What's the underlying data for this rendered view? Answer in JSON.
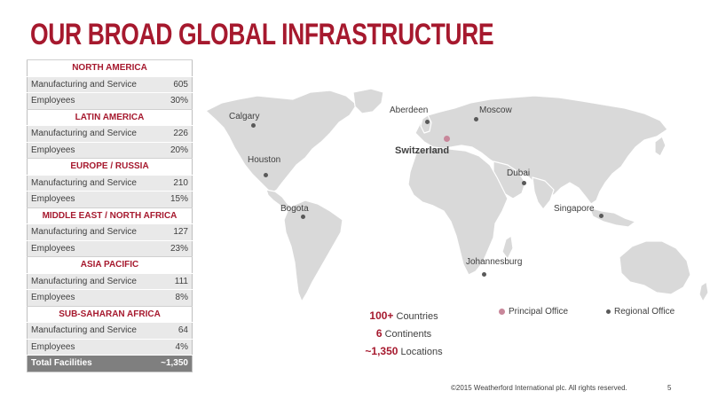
{
  "title": "OUR BROAD GLOBAL INFRASTRUCTURE",
  "regions": [
    {
      "name": "NORTH AMERICA",
      "mfg_label": "Manufacturing and Service",
      "mfg": "605",
      "emp_label": "Employees",
      "emp": "30%"
    },
    {
      "name": "LATIN AMERICA",
      "mfg_label": "Manufacturing and Service",
      "mfg": "226",
      "emp_label": "Employees",
      "emp": "20%"
    },
    {
      "name": "EUROPE / RUSSIA",
      "mfg_label": "Manufacturing and Service",
      "mfg": "210",
      "emp_label": "Employees",
      "emp": "15%"
    },
    {
      "name": "MIDDLE EAST / NORTH AFRICA",
      "mfg_label": "Manufacturing and Service",
      "mfg": "127",
      "emp_label": "Employees",
      "emp": "23%"
    },
    {
      "name": "ASIA PACIFIC",
      "mfg_label": "Manufacturing and Service",
      "mfg": "111",
      "emp_label": "Employees",
      "emp": "8%"
    },
    {
      "name": "SUB-SAHARAN AFRICA",
      "mfg_label": "Manufacturing and Service",
      "mfg": "64",
      "emp_label": "Employees",
      "emp": "4%"
    }
  ],
  "total": {
    "label": "Total Facilities",
    "value": "~1,350"
  },
  "cities": {
    "calgary": "Calgary",
    "houston": "Houston",
    "bogota": "Bogota",
    "aberdeen": "Aberdeen",
    "moscow": "Moscow",
    "switzerland": "Switzerland",
    "dubai": "Dubai",
    "singapore": "Singapore",
    "johannesburg": "Johannesburg"
  },
  "stats": {
    "countries_value": "100+",
    "countries_label": "Countries",
    "continents_value": "6",
    "continents_label": "Continents",
    "locations_value": "~1,350",
    "locations_label": "Locations"
  },
  "legend": {
    "principal": "Principal Office",
    "regional": "Regional Office"
  },
  "footer": {
    "copyright": "©2015 Weatherford International plc.  All rights reserved.",
    "page": "5"
  },
  "colors": {
    "accent": "#a6192e",
    "map_land": "#d9d9d9",
    "principal_dot": "#c8879a",
    "regional_dot": "#595959"
  }
}
